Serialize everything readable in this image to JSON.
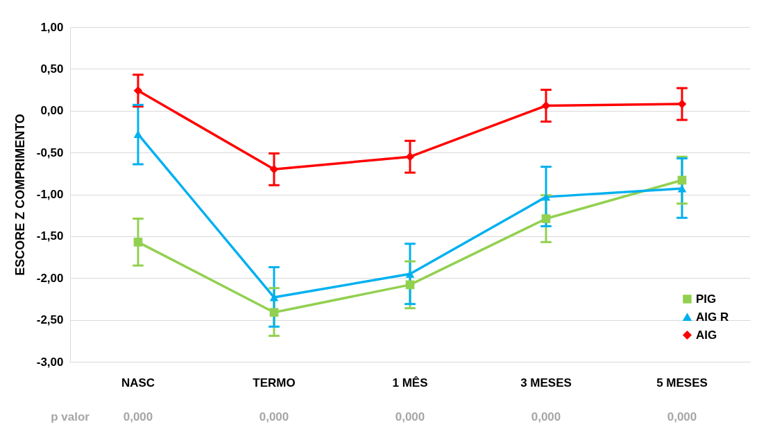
{
  "chart_data": {
    "type": "line",
    "ylabel": "ESCORE Z COMPRIMENTO",
    "categories": [
      "NASC",
      "TERMO",
      "1 MÊS",
      "3 MESES",
      "5 MESES"
    ],
    "series": [
      {
        "name": "PIG",
        "color": "#92d050",
        "marker": "square",
        "values": [
          -1.57,
          -2.41,
          -2.08,
          -1.29,
          -0.83
        ],
        "errors": [
          [
            -1.85,
            -1.29
          ],
          [
            -2.69,
            -2.12
          ],
          [
            -2.36,
            -1.8
          ],
          [
            -1.57,
            -1.01
          ],
          [
            -1.11,
            -0.55
          ]
        ]
      },
      {
        "name": "AIG R",
        "color": "#00b0f0",
        "marker": "triangle",
        "values": [
          -0.28,
          -2.23,
          -1.95,
          -1.03,
          -0.93
        ],
        "errors": [
          [
            -0.64,
            0.07
          ],
          [
            -2.58,
            -1.87
          ],
          [
            -2.31,
            -1.59
          ],
          [
            -1.38,
            -0.67
          ],
          [
            -1.28,
            -0.57
          ]
        ]
      },
      {
        "name": "AIG",
        "color": "#ff0000",
        "marker": "diamond",
        "values": [
          0.24,
          -0.7,
          -0.55,
          0.06,
          0.08
        ],
        "errors": [
          [
            0.05,
            0.43
          ],
          [
            -0.89,
            -0.51
          ],
          [
            -0.74,
            -0.36
          ],
          [
            -0.13,
            0.25
          ],
          [
            -0.11,
            0.27
          ]
        ]
      }
    ],
    "ylim": [
      -3,
      1
    ],
    "yticks": [
      {
        "value": -3,
        "label": "-3,00"
      },
      {
        "value": -2.5,
        "label": "-2,50"
      },
      {
        "value": -2,
        "label": "-2,00"
      },
      {
        "value": -1.5,
        "label": "-1,50"
      },
      {
        "value": -1,
        "label": "-1,00"
      },
      {
        "value": -0.5,
        "label": "-0,50"
      },
      {
        "value": 0,
        "label": "0,00"
      },
      {
        "value": 0.5,
        "label": "0,50"
      },
      {
        "value": 1,
        "label": "1,00"
      }
    ],
    "grid": "y",
    "legend": "bottom right",
    "line_style": "solid",
    "annotations": [
      "p valor",
      "0,000",
      "0,000",
      "0,000",
      "0,000",
      "0,000"
    ]
  }
}
